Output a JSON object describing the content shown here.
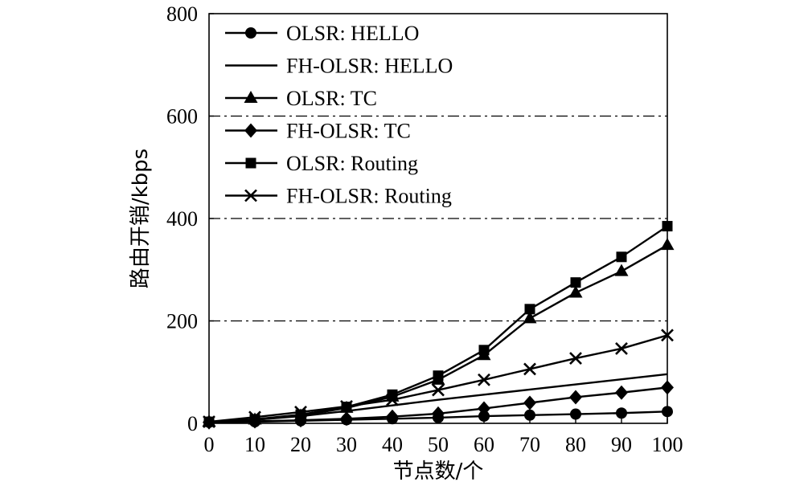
{
  "chart_data": {
    "type": "line",
    "xlabel": "节点数/个",
    "ylabel": "路由开销/kbps",
    "xlim": [
      0,
      100
    ],
    "ylim": [
      0,
      800
    ],
    "x": [
      0,
      10,
      20,
      30,
      40,
      50,
      60,
      70,
      80,
      90,
      100
    ],
    "x_ticks": [
      "0",
      "10",
      "20",
      "30",
      "40",
      "50",
      "60",
      "70",
      "80",
      "90",
      "100"
    ],
    "y_ticks": [
      "0",
      "200",
      "400",
      "600",
      "800"
    ],
    "gridlines_y": [
      200,
      400,
      600
    ],
    "grid_style": "dash-dot",
    "legend_position": "top-left",
    "series": [
      {
        "name": "OLSR: HELLO",
        "marker": "circle",
        "values": [
          2,
          3,
          5,
          7,
          9,
          11,
          14,
          16,
          18,
          20,
          23
        ]
      },
      {
        "name": "FH-OLSR: HELLO",
        "marker": "none",
        "values": [
          3,
          7,
          14,
          24,
          35,
          46,
          56,
          66,
          76,
          86,
          96
        ]
      },
      {
        "name": "OLSR: TC",
        "marker": "triangle",
        "values": [
          3,
          7,
          15,
          30,
          52,
          85,
          133,
          205,
          255,
          297,
          348
        ]
      },
      {
        "name": "FH-OLSR: TC",
        "marker": "diamond",
        "values": [
          2,
          4,
          6,
          9,
          13,
          19,
          29,
          40,
          51,
          60,
          70
        ]
      },
      {
        "name": "OLSR: Routing",
        "marker": "square",
        "values": [
          3,
          8,
          17,
          32,
          56,
          93,
          143,
          223,
          275,
          325,
          385
        ]
      },
      {
        "name": "FH-OLSR: Routing",
        "marker": "x",
        "values": [
          3,
          12,
          22,
          33,
          46,
          65,
          85,
          106,
          127,
          146,
          172
        ]
      }
    ],
    "colors": {
      "line": "#000000",
      "grid": "#000000",
      "background": "#ffffff"
    }
  }
}
